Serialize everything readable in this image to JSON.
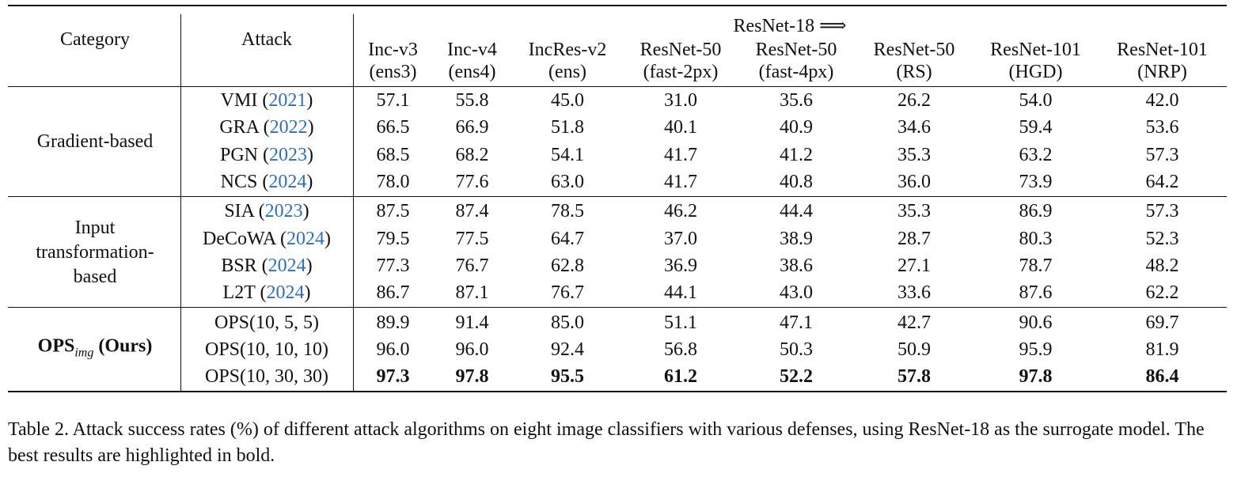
{
  "table": {
    "category_header": "Category",
    "attack_header": "Attack",
    "group_header": "ResNet-18 ⟹",
    "columns": [
      [
        "Inc-v3",
        "(ens3)"
      ],
      [
        "Inc-v4",
        "(ens4)"
      ],
      [
        "IncRes-v2",
        "(ens)"
      ],
      [
        "ResNet-50",
        "(fast-2px)"
      ],
      [
        "ResNet-50",
        "(fast-4px)"
      ],
      [
        "ResNet-50",
        "(RS)"
      ],
      [
        "ResNet-101",
        "(HGD)"
      ],
      [
        "ResNet-101",
        "(NRP)"
      ]
    ],
    "groups": [
      {
        "category": {
          "lines": [
            "Gradient-based"
          ]
        },
        "rows": [
          {
            "attack": [
              "VMI (",
              "2021",
              ")"
            ],
            "values": [
              "57.1",
              "55.8",
              "45.0",
              "31.0",
              "35.6",
              "26.2",
              "54.0",
              "42.0"
            ]
          },
          {
            "attack": [
              "GRA (",
              "2022",
              ")"
            ],
            "values": [
              "66.5",
              "66.9",
              "51.8",
              "40.1",
              "40.9",
              "34.6",
              "59.4",
              "53.6"
            ]
          },
          {
            "attack": [
              "PGN (",
              "2023",
              ")"
            ],
            "values": [
              "68.5",
              "68.2",
              "54.1",
              "41.7",
              "41.2",
              "35.3",
              "63.2",
              "57.3"
            ]
          },
          {
            "attack": [
              "NCS (",
              "2024",
              ")"
            ],
            "values": [
              "78.0",
              "77.6",
              "63.0",
              "41.7",
              "40.8",
              "36.0",
              "73.9",
              "64.2"
            ]
          }
        ]
      },
      {
        "category": {
          "lines": [
            "Input",
            "transformation-",
            "based"
          ]
        },
        "rows": [
          {
            "attack": [
              "SIA (",
              "2023",
              ")"
            ],
            "values": [
              "87.5",
              "87.4",
              "78.5",
              "46.2",
              "44.4",
              "35.3",
              "86.9",
              "57.3"
            ]
          },
          {
            "attack": [
              "DeCoWA (",
              "2024",
              ")"
            ],
            "values": [
              "79.5",
              "77.5",
              "64.7",
              "37.0",
              "38.9",
              "28.7",
              "80.3",
              "52.3"
            ]
          },
          {
            "attack": [
              "BSR (",
              "2024",
              ")"
            ],
            "values": [
              "77.3",
              "76.7",
              "62.8",
              "36.9",
              "38.6",
              "27.1",
              "78.7",
              "48.2"
            ]
          },
          {
            "attack": [
              "L2T (",
              "2024",
              ")"
            ],
            "values": [
              "86.7",
              "87.1",
              "76.7",
              "44.1",
              "43.0",
              "33.6",
              "87.6",
              "62.2"
            ]
          }
        ]
      },
      {
        "category": {
          "parts": [
            "OPS",
            "img",
            " (Ours)"
          ],
          "bold": true
        },
        "rows": [
          {
            "attack": [
              "OPS(10, 5, 5)"
            ],
            "values": [
              "89.9",
              "91.4",
              "85.0",
              "51.1",
              "47.1",
              "42.7",
              "90.6",
              "69.7"
            ]
          },
          {
            "attack": [
              "OPS(10, 10, 10)"
            ],
            "values": [
              "96.0",
              "96.0",
              "92.4",
              "56.8",
              "50.3",
              "50.9",
              "95.9",
              "81.9"
            ]
          },
          {
            "attack": [
              "OPS(10, 30, 30)"
            ],
            "values": [
              "97.3",
              "97.8",
              "95.5",
              "61.2",
              "52.2",
              "57.8",
              "97.8",
              "86.4"
            ],
            "bold": true
          }
        ]
      }
    ]
  },
  "caption": "Table 2. Attack success rates (%) of different attack algorithms on eight image classifiers with various defenses, using ResNet-18 as the surrogate model. The best results are highlighted in bold."
}
